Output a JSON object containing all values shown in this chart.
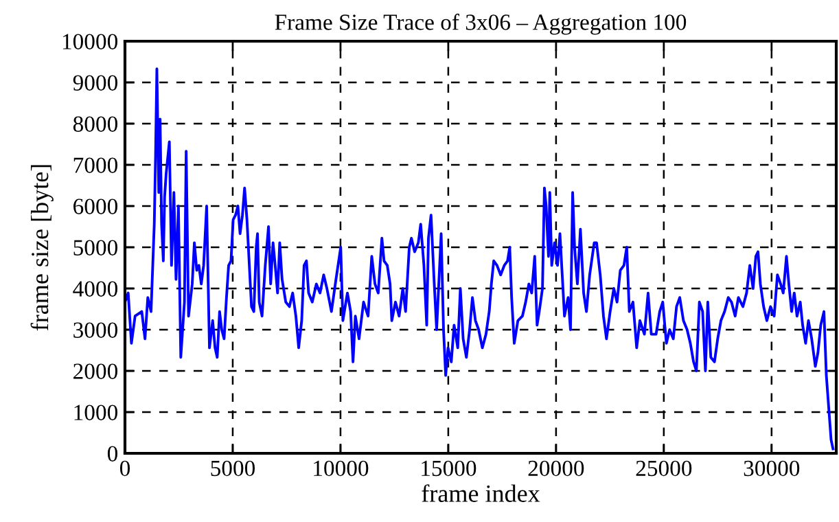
{
  "chart_data": {
    "type": "line",
    "title": "Frame Size Trace of 3x06 – Aggregation 100",
    "xlabel": "frame index",
    "ylabel": "frame size [byte]",
    "xlim": [
      0,
      33000
    ],
    "xticks": [
      0,
      5000,
      10000,
      15000,
      20000,
      25000,
      30000
    ],
    "ylim": [
      0,
      10000
    ],
    "yticks": [
      0,
      1000,
      2000,
      3000,
      4000,
      5000,
      6000,
      7000,
      8000,
      9000,
      10000
    ],
    "grid": true,
    "legend": false,
    "marker": "none",
    "line_style": "solid",
    "series": [
      {
        "color": "#0000ff",
        "x": [
          0,
          150,
          300,
          470,
          780,
          930,
          1060,
          1210,
          1270,
          1360,
          1420,
          1480,
          1570,
          1630,
          1700,
          1780,
          1840,
          1910,
          2060,
          2160,
          2270,
          2370,
          2480,
          2590,
          2760,
          2840,
          2950,
          3120,
          3220,
          3330,
          3430,
          3540,
          3650,
          3790,
          3920,
          4070,
          4180,
          4280,
          4390,
          4490,
          4600,
          4710,
          4810,
          4920,
          5020,
          5130,
          5240,
          5340,
          5450,
          5550,
          5660,
          5770,
          5870,
          5980,
          6090,
          6150,
          6230,
          6360,
          6510,
          6660,
          6760,
          6870,
          6970,
          7080,
          7180,
          7290,
          7460,
          7630,
          7780,
          7930,
          8060,
          8200,
          8310,
          8420,
          8520,
          8690,
          8880,
          9050,
          9220,
          9370,
          9580,
          9790,
          10010,
          10110,
          10320,
          10470,
          10580,
          10690,
          10860,
          11070,
          11280,
          11450,
          11600,
          11750,
          11920,
          12020,
          12170,
          12300,
          12380,
          12550,
          12720,
          12890,
          13020,
          13190,
          13290,
          13440,
          13610,
          13720,
          13870,
          14000,
          14080,
          14200,
          14350,
          14460,
          14670,
          14780,
          14880,
          14990,
          15140,
          15270,
          15440,
          15560,
          15690,
          15840,
          15990,
          16120,
          16260,
          16410,
          16580,
          16750,
          16900,
          17000,
          17110,
          17260,
          17430,
          17600,
          17750,
          17850,
          17940,
          18060,
          18230,
          18440,
          18590,
          18740,
          18870,
          19010,
          19120,
          19220,
          19370,
          19460,
          19540,
          19650,
          19710,
          19800,
          19930,
          20070,
          20180,
          20310,
          20390,
          20560,
          20670,
          20770,
          20860,
          20990,
          21130,
          21280,
          21410,
          21560,
          21770,
          21880,
          22050,
          22200,
          22340,
          22510,
          22680,
          22830,
          22980,
          23150,
          23280,
          23400,
          23570,
          23740,
          23890,
          24100,
          24270,
          24420,
          24640,
          24810,
          24950,
          25120,
          25270,
          25440,
          25590,
          25740,
          25910,
          26080,
          26230,
          26380,
          26510,
          26650,
          26800,
          26930,
          27040,
          27180,
          27350,
          27500,
          27650,
          27820,
          27990,
          28140,
          28310,
          28460,
          28670,
          28840,
          28990,
          29140,
          29270,
          29370,
          29480,
          29630,
          29780,
          29950,
          30120,
          30270,
          30420,
          30540,
          30690,
          30800,
          30930,
          31050,
          31180,
          31330,
          31440,
          31580,
          31710,
          31860,
          32030,
          32150,
          32280,
          32430,
          32540,
          32650,
          32760,
          32850
        ],
        "values": [
          3670,
          3890,
          2670,
          3330,
          3440,
          2780,
          3780,
          3440,
          4280,
          5560,
          7220,
          9330,
          6330,
          8110,
          5560,
          4670,
          6220,
          6780,
          7560,
          4560,
          6330,
          4220,
          6000,
          2330,
          3670,
          7330,
          3330,
          4110,
          5110,
          4440,
          4560,
          4110,
          4560,
          6000,
          2560,
          3220,
          2560,
          2330,
          3440,
          3000,
          2780,
          3780,
          4560,
          4670,
          5670,
          5780,
          6000,
          5330,
          5780,
          6440,
          5670,
          4560,
          3560,
          3440,
          5000,
          5330,
          3670,
          3330,
          4560,
          5500,
          4110,
          5110,
          4560,
          3890,
          5110,
          4220,
          3670,
          3560,
          3890,
          3330,
          2560,
          3220,
          4560,
          4670,
          3890,
          3670,
          4110,
          3890,
          4330,
          4000,
          3440,
          4220,
          5000,
          3220,
          3890,
          3440,
          2220,
          3330,
          2780,
          3670,
          3330,
          4780,
          4110,
          3890,
          5220,
          4670,
          4560,
          4110,
          3220,
          3670,
          3330,
          4000,
          3440,
          5000,
          5220,
          4890,
          5110,
          5560,
          4560,
          3110,
          5220,
          5780,
          4110,
          3000,
          5330,
          3000,
          1890,
          2560,
          2220,
          3110,
          2560,
          4000,
          2780,
          2330,
          3000,
          3780,
          3220,
          3000,
          2560,
          2890,
          3440,
          4110,
          4670,
          4560,
          4330,
          4560,
          4670,
          5000,
          3780,
          2670,
          3220,
          3330,
          3670,
          4110,
          3890,
          4780,
          3110,
          3440,
          4000,
          6440,
          6000,
          4780,
          6330,
          4560,
          5110,
          4560,
          5330,
          4110,
          3330,
          3780,
          3000,
          6330,
          5000,
          4110,
          5440,
          3890,
          3440,
          4330,
          5110,
          5110,
          4330,
          3330,
          2780,
          3440,
          4000,
          3670,
          4440,
          4560,
          5000,
          3440,
          3670,
          2560,
          3220,
          2890,
          3890,
          2890,
          2890,
          3440,
          3670,
          2670,
          3000,
          2780,
          3560,
          3780,
          3220,
          3000,
          2670,
          2220,
          2000,
          3670,
          3440,
          2000,
          3670,
          2330,
          2220,
          2780,
          3220,
          3440,
          3780,
          3670,
          3330,
          3780,
          3560,
          3890,
          4560,
          4000,
          4780,
          4890,
          4110,
          3560,
          3220,
          3560,
          3330,
          4330,
          4110,
          3890,
          4780,
          4110,
          3440,
          3890,
          3330,
          3670,
          3110,
          2670,
          3220,
          2780,
          2110,
          2440,
          3110,
          3440,
          1890,
          1110,
          330,
          110
        ]
      }
    ]
  }
}
